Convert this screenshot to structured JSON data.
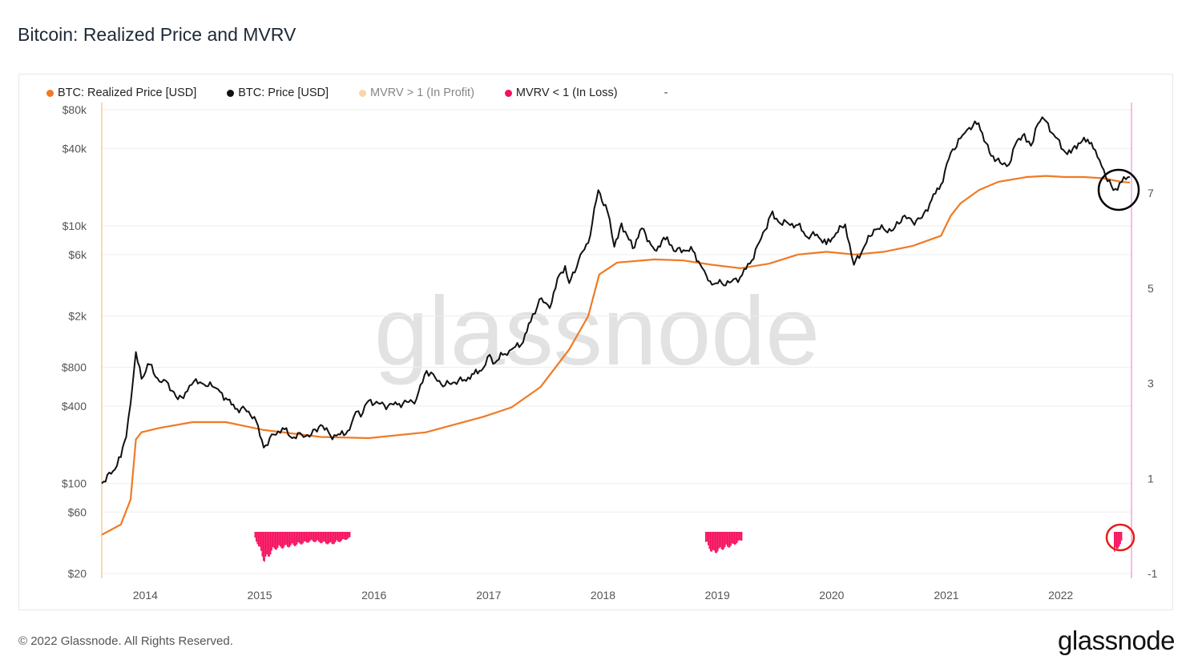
{
  "page": {
    "title": "Bitcoin: Realized Price and MVRV",
    "copyright": "© 2022 Glassnode. All Rights Reserved.",
    "logo": "glassnode",
    "watermark": "glassnode"
  },
  "legend": [
    {
      "label": "BTC: Realized Price [USD]",
      "color": "#f07a24",
      "dim": false
    },
    {
      "label": "BTC: Price [USD]",
      "color": "#111111",
      "dim": false
    },
    {
      "label": "MVRV > 1 (In Profit)",
      "color": "#f7b267",
      "dim": true
    },
    {
      "label": "MVRV < 1 (In Loss)",
      "color": "#f5105e",
      "dim": false
    }
  ],
  "legend_extra": "-",
  "chart_data": {
    "type": "line",
    "title": "Bitcoin: Realized Price and MVRV",
    "x_ticks": [
      "2014",
      "2015",
      "2016",
      "2017",
      "2018",
      "2019",
      "2020",
      "2021",
      "2022"
    ],
    "x_range": [
      "2013-08-15",
      "2022-08-15"
    ],
    "y_left_scale": "log",
    "y_left_ticks": [
      "$80k",
      "$40k",
      "$10k",
      "$6k",
      "$2k",
      "$800",
      "$400",
      "$100",
      "$60",
      "$20"
    ],
    "y_left_range": [
      20,
      80000
    ],
    "y_right_ticks": [
      "7",
      "5",
      "3",
      "1",
      "-1"
    ],
    "y_right_range": [
      -1,
      7
    ],
    "colors": {
      "realized": "#f07a24",
      "price": "#111111",
      "loss": "#f5105e",
      "profit_axis": "#f7b267",
      "right_axis": "#e879c9"
    },
    "series": [
      {
        "name": "BTC: Price [USD]",
        "x": [
          "2013-08-15",
          "2013-09-20",
          "2013-10-15",
          "2013-11-01",
          "2013-11-15",
          "2013-12-02",
          "2013-12-20",
          "2014-01-15",
          "2014-02-15",
          "2014-03-15",
          "2014-04-15",
          "2014-05-15",
          "2014-06-05",
          "2014-07-01",
          "2014-08-15",
          "2014-09-15",
          "2014-10-15",
          "2014-11-15",
          "2014-12-15",
          "2015-01-14",
          "2015-02-15",
          "2015-03-15",
          "2015-04-15",
          "2015-05-15",
          "2015-06-15",
          "2015-07-15",
          "2015-08-15",
          "2015-09-15",
          "2015-10-15",
          "2015-11-04",
          "2015-11-20",
          "2015-12-15",
          "2016-01-15",
          "2016-02-15",
          "2016-03-15",
          "2016-04-15",
          "2016-05-15",
          "2016-06-17",
          "2016-07-15",
          "2016-08-15",
          "2016-09-15",
          "2016-10-15",
          "2016-11-15",
          "2016-12-15",
          "2017-01-04",
          "2017-01-15",
          "2017-02-15",
          "2017-03-15",
          "2017-04-15",
          "2017-05-15",
          "2017-06-12",
          "2017-07-15",
          "2017-08-15",
          "2017-09-02",
          "2017-09-15",
          "2017-10-15",
          "2017-11-15",
          "2017-12-17",
          "2018-01-15",
          "2018-02-06",
          "2018-03-01",
          "2018-04-06",
          "2018-05-05",
          "2018-06-15",
          "2018-07-25",
          "2018-08-15",
          "2018-09-15",
          "2018-10-15",
          "2018-11-20",
          "2018-12-15",
          "2019-01-15",
          "2019-02-15",
          "2019-03-15",
          "2019-04-15",
          "2019-05-15",
          "2019-06-26",
          "2019-07-15",
          "2019-08-15",
          "2019-09-15",
          "2019-10-15",
          "2019-11-15",
          "2019-12-15",
          "2020-01-15",
          "2020-02-13",
          "2020-03-12",
          "2020-04-15",
          "2020-05-15",
          "2020-06-15",
          "2020-07-15",
          "2020-08-15",
          "2020-09-15",
          "2020-10-15",
          "2020-11-15",
          "2020-12-15",
          "2021-01-15",
          "2021-02-15",
          "2021-03-15",
          "2021-04-14",
          "2021-05-19",
          "2021-06-22",
          "2021-07-20",
          "2021-08-15",
          "2021-09-07",
          "2021-09-28",
          "2021-10-20",
          "2021-11-10",
          "2021-12-15",
          "2022-01-22",
          "2022-02-15",
          "2022-03-28",
          "2022-04-15",
          "2022-05-12",
          "2022-06-18",
          "2022-07-15",
          "2022-08-10"
        ],
        "values": [
          100,
          125,
          160,
          230,
          420,
          1050,
          650,
          840,
          620,
          600,
          450,
          520,
          620,
          600,
          550,
          460,
          380,
          380,
          330,
          190,
          240,
          270,
          225,
          240,
          240,
          285,
          235,
          240,
          260,
          360,
          330,
          440,
          420,
          400,
          410,
          430,
          450,
          750,
          660,
          580,
          610,
          640,
          710,
          790,
          1000,
          850,
          1000,
          1100,
          1200,
          1800,
          2700,
          2300,
          4200,
          4900,
          3600,
          5400,
          7400,
          19000,
          13000,
          6900,
          10500,
          6700,
          9600,
          6500,
          8200,
          6400,
          6500,
          6400,
          4500,
          3500,
          3600,
          3700,
          4000,
          5100,
          7500,
          13000,
          10800,
          10500,
          10200,
          8200,
          8600,
          7200,
          8800,
          10300,
          5000,
          7000,
          9400,
          9500,
          9300,
          11800,
          10800,
          11600,
          16000,
          21000,
          37000,
          48000,
          58000,
          63000,
          37000,
          31000,
          30000,
          46000,
          52000,
          42000,
          62000,
          67000,
          49000,
          36000,
          42000,
          47000,
          40000,
          29000,
          19000,
          22000,
          24000
        ]
      },
      {
        "name": "BTC: Realized Price [USD]",
        "x": [
          "2013-08-15",
          "2013-10-15",
          "2013-11-15",
          "2013-12-02",
          "2013-12-20",
          "2014-02-15",
          "2014-06-01",
          "2014-09-15",
          "2015-01-15",
          "2015-07-15",
          "2015-12-15",
          "2016-06-15",
          "2016-12-15",
          "2017-03-15",
          "2017-06-15",
          "2017-09-15",
          "2017-11-15",
          "2017-12-20",
          "2018-02-15",
          "2018-06-15",
          "2018-09-15",
          "2018-12-15",
          "2019-03-15",
          "2019-06-15",
          "2019-09-15",
          "2019-12-15",
          "2020-03-15",
          "2020-06-15",
          "2020-09-15",
          "2020-12-15",
          "2021-01-15",
          "2021-02-15",
          "2021-04-15",
          "2021-06-15",
          "2021-09-15",
          "2021-11-15",
          "2022-01-15",
          "2022-03-15",
          "2022-05-15",
          "2022-07-15",
          "2022-08-10"
        ],
        "values": [
          40,
          48,
          75,
          220,
          250,
          270,
          300,
          300,
          260,
          230,
          225,
          250,
          330,
          390,
          560,
          1100,
          2000,
          4200,
          5200,
          5500,
          5400,
          5000,
          4700,
          5100,
          6000,
          6300,
          6000,
          6300,
          7000,
          8400,
          12000,
          15000,
          19000,
          22000,
          24000,
          24500,
          24000,
          24000,
          23500,
          22000,
          21800
        ]
      },
      {
        "name": "MVRV < 1 (In Loss)",
        "x": [
          "2014-12-15",
          "2015-01-14",
          "2015-02-15",
          "2015-04-15",
          "2015-06-15",
          "2015-08-15",
          "2015-09-15",
          "2015-10-15",
          "2018-11-20",
          "2018-12-15",
          "2019-01-15",
          "2019-02-15",
          "2019-03-20",
          "2020-03-12",
          "2022-06-18",
          "2022-07-15"
        ],
        "values": [
          0.92,
          0.62,
          0.78,
          0.82,
          0.88,
          0.84,
          0.88,
          0.92,
          0.88,
          0.72,
          0.78,
          0.82,
          0.9,
          0.86,
          0.72,
          0.88
        ]
      }
    ]
  }
}
